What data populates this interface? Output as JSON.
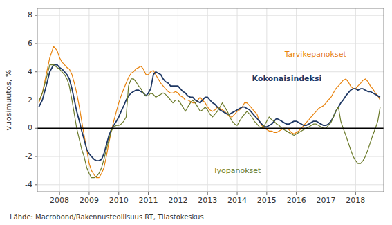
{
  "chart_data": {
    "type": "line",
    "y_label": "vuosimuutos, %",
    "annotations": [
      "Lähde: Macrobond/Rakennusteollisuus RT, Tilastokeskus"
    ],
    "xlim": [
      2007.25,
      2018.95
    ],
    "xticks": [
      2008,
      2009,
      2010,
      2011,
      2012,
      2013,
      2014,
      2015,
      2016,
      2017,
      2018
    ],
    "ylim": [
      -4.5,
      8.5
    ],
    "yticks": [
      -4,
      -2,
      0,
      2,
      4,
      6,
      8
    ],
    "grid": true,
    "x": [
      2007.3,
      2007.42,
      2007.55,
      2007.67,
      2007.8,
      2007.92,
      2008.0,
      2008.08,
      2008.17,
      2008.25,
      2008.33,
      2008.42,
      2008.5,
      2008.58,
      2008.67,
      2008.75,
      2008.83,
      2008.92,
      2009.0,
      2009.08,
      2009.17,
      2009.25,
      2009.33,
      2009.42,
      2009.5,
      2009.58,
      2009.67,
      2009.75,
      2009.83,
      2009.92,
      2010.0,
      2010.08,
      2010.17,
      2010.25,
      2010.33,
      2010.42,
      2010.5,
      2010.58,
      2010.67,
      2010.75,
      2010.83,
      2010.92,
      2011.0,
      2011.08,
      2011.17,
      2011.25,
      2011.33,
      2011.42,
      2011.5,
      2011.58,
      2011.67,
      2011.75,
      2011.83,
      2011.92,
      2012.0,
      2012.08,
      2012.17,
      2012.25,
      2012.33,
      2012.42,
      2012.5,
      2012.58,
      2012.67,
      2012.75,
      2012.83,
      2012.92,
      2013.0,
      2013.08,
      2013.17,
      2013.25,
      2013.33,
      2013.42,
      2013.5,
      2013.58,
      2013.67,
      2013.75,
      2013.83,
      2013.92,
      2014.0,
      2014.08,
      2014.17,
      2014.25,
      2014.33,
      2014.42,
      2014.5,
      2014.58,
      2014.67,
      2014.75,
      2014.83,
      2014.92,
      2015.0,
      2015.08,
      2015.17,
      2015.25,
      2015.33,
      2015.42,
      2015.5,
      2015.58,
      2015.67,
      2015.75,
      2015.83,
      2015.92,
      2016.0,
      2016.08,
      2016.17,
      2016.25,
      2016.33,
      2016.42,
      2016.5,
      2016.58,
      2016.67,
      2016.75,
      2016.83,
      2016.92,
      2017.0,
      2017.08,
      2017.17,
      2017.25,
      2017.33,
      2017.42,
      2017.5,
      2017.58,
      2017.67,
      2017.75,
      2017.83,
      2017.92,
      2018.0,
      2018.08,
      2018.17,
      2018.25,
      2018.33,
      2018.42,
      2018.5,
      2018.58,
      2018.67,
      2018.75,
      2018.83
    ],
    "series": [
      {
        "name": "Tarvikepanokset",
        "color": "#E8820C",
        "values": [
          1.8,
          2.5,
          3.8,
          5.0,
          5.8,
          5.5,
          5.0,
          4.7,
          4.5,
          4.3,
          4.2,
          3.8,
          3.2,
          2.5,
          1.5,
          0.5,
          -0.5,
          -1.5,
          -2.5,
          -3.0,
          -3.3,
          -3.5,
          -3.5,
          -3.2,
          -2.8,
          -2.0,
          -1.0,
          -0.2,
          0.5,
          1.2,
          1.8,
          2.3,
          2.8,
          3.2,
          3.6,
          3.9,
          4.0,
          4.2,
          4.3,
          4.4,
          4.2,
          3.8,
          3.8,
          4.0,
          4.1,
          3.8,
          3.5,
          3.2,
          3.0,
          2.8,
          2.6,
          2.5,
          2.5,
          2.6,
          2.5,
          2.3,
          2.2,
          2.0,
          2.0,
          1.9,
          1.8,
          1.8,
          2.0,
          2.2,
          2.0,
          1.8,
          1.5,
          1.3,
          1.2,
          1.3,
          1.5,
          1.4,
          1.3,
          1.2,
          1.0,
          0.8,
          0.8,
          1.0,
          1.2,
          1.3,
          1.5,
          1.8,
          1.8,
          1.6,
          1.4,
          1.2,
          1.0,
          0.5,
          0.2,
          0.0,
          -0.1,
          -0.2,
          -0.2,
          -0.3,
          -0.3,
          -0.2,
          -0.1,
          0.0,
          0.0,
          -0.1,
          -0.3,
          -0.4,
          -0.3,
          -0.2,
          0.0,
          0.2,
          0.4,
          0.6,
          0.8,
          1.0,
          1.2,
          1.4,
          1.5,
          1.6,
          1.8,
          2.0,
          2.2,
          2.5,
          2.8,
          3.0,
          3.2,
          3.4,
          3.5,
          3.3,
          3.0,
          2.8,
          2.8,
          3.0,
          3.2,
          3.4,
          3.5,
          3.3,
          3.0,
          2.8,
          2.5,
          2.3,
          2.0
        ]
      },
      {
        "name": "Kokonaisindeksi",
        "color": "#1F3864",
        "values": [
          1.5,
          2.0,
          3.0,
          4.0,
          4.5,
          4.5,
          4.3,
          4.2,
          4.0,
          3.8,
          3.5,
          2.8,
          2.0,
          1.2,
          0.5,
          -0.2,
          -0.8,
          -1.5,
          -1.8,
          -2.0,
          -2.2,
          -2.3,
          -2.3,
          -2.2,
          -1.8,
          -1.2,
          -0.5,
          -0.1,
          0.2,
          0.5,
          0.8,
          1.2,
          1.6,
          2.0,
          2.3,
          2.5,
          2.6,
          2.7,
          2.7,
          2.6,
          2.5,
          2.3,
          2.5,
          2.8,
          3.8,
          4.0,
          3.9,
          3.8,
          3.5,
          3.3,
          3.2,
          3.0,
          3.0,
          3.0,
          3.0,
          2.8,
          2.6,
          2.5,
          2.3,
          2.2,
          2.2,
          2.0,
          1.9,
          1.8,
          2.0,
          2.2,
          2.2,
          2.0,
          1.8,
          1.7,
          1.5,
          1.3,
          1.2,
          1.1,
          1.0,
          1.0,
          1.1,
          1.2,
          1.3,
          1.4,
          1.5,
          1.5,
          1.4,
          1.3,
          1.1,
          0.9,
          0.7,
          0.5,
          0.3,
          0.1,
          0.1,
          0.2,
          0.3,
          0.5,
          0.7,
          0.6,
          0.5,
          0.4,
          0.3,
          0.3,
          0.4,
          0.5,
          0.5,
          0.4,
          0.3,
          0.2,
          0.2,
          0.3,
          0.4,
          0.5,
          0.5,
          0.4,
          0.3,
          0.2,
          0.2,
          0.3,
          0.5,
          0.8,
          1.2,
          1.5,
          1.8,
          2.0,
          2.3,
          2.5,
          2.7,
          2.8,
          2.8,
          2.7,
          2.8,
          2.8,
          2.7,
          2.6,
          2.6,
          2.5,
          2.4,
          2.3,
          2.2
        ]
      },
      {
        "name": "Työpanokset",
        "color": "#6B7A2A",
        "values": [
          1.9,
          2.5,
          3.5,
          4.5,
          4.5,
          4.3,
          4.2,
          4.0,
          3.8,
          3.5,
          3.0,
          2.0,
          1.0,
          0.0,
          -0.8,
          -1.5,
          -2.0,
          -2.8,
          -3.2,
          -3.5,
          -3.5,
          -3.4,
          -3.2,
          -2.8,
          -2.2,
          -1.5,
          -0.8,
          -0.2,
          0.1,
          0.2,
          0.2,
          0.3,
          0.5,
          0.8,
          3.0,
          3.5,
          3.5,
          3.3,
          3.0,
          2.8,
          2.5,
          2.3,
          2.3,
          2.5,
          2.4,
          2.2,
          2.3,
          2.4,
          2.5,
          2.4,
          2.2,
          2.0,
          1.8,
          2.0,
          2.0,
          1.8,
          1.5,
          1.2,
          1.5,
          1.8,
          2.0,
          1.8,
          1.5,
          1.2,
          1.3,
          1.5,
          1.3,
          1.0,
          0.8,
          1.0,
          1.2,
          1.5,
          1.8,
          1.5,
          1.2,
          0.8,
          0.5,
          0.3,
          0.2,
          0.5,
          0.8,
          1.0,
          1.2,
          1.0,
          0.8,
          0.5,
          0.3,
          0.1,
          0.0,
          0.2,
          0.5,
          0.8,
          0.6,
          0.5,
          0.3,
          0.2,
          0.0,
          -0.1,
          -0.2,
          -0.3,
          -0.4,
          -0.5,
          -0.4,
          -0.3,
          -0.2,
          -0.1,
          0.0,
          0.1,
          0.2,
          0.3,
          0.3,
          0.2,
          0.1,
          0.0,
          0.0,
          0.2,
          0.4,
          0.8,
          1.2,
          1.5,
          0.5,
          0.0,
          -0.5,
          -1.0,
          -1.5,
          -2.0,
          -2.3,
          -2.5,
          -2.5,
          -2.3,
          -2.0,
          -1.5,
          -1.0,
          -0.5,
          0.0,
          0.5,
          1.5
        ]
      }
    ]
  }
}
